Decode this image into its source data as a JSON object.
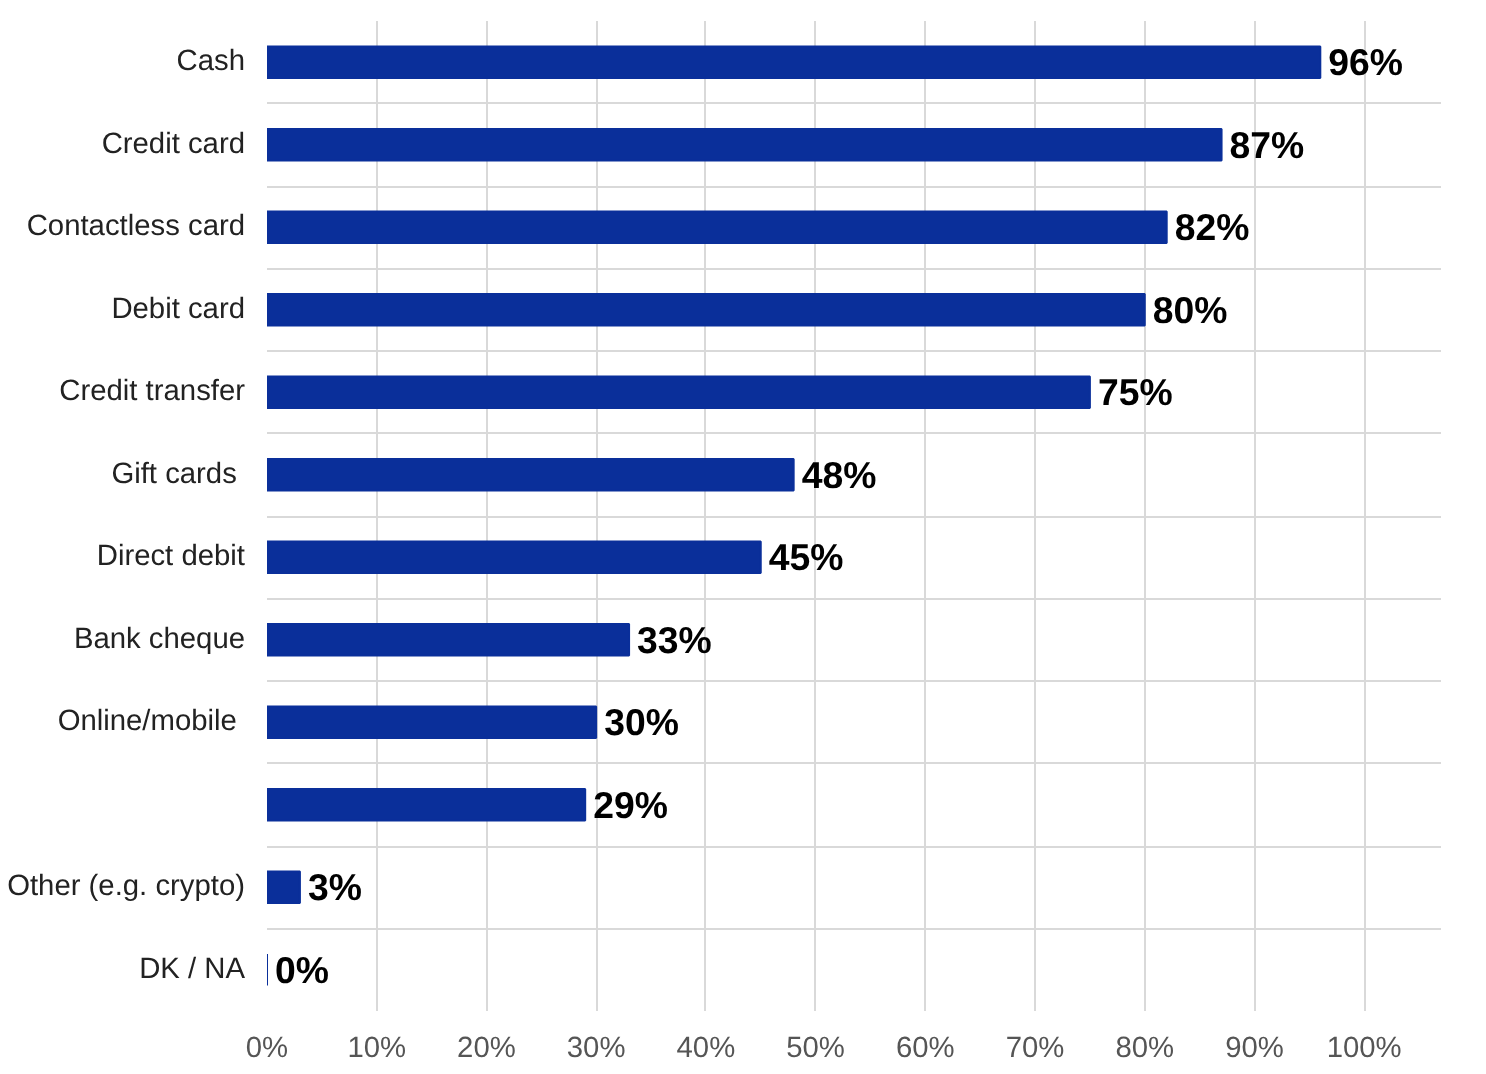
{
  "chart_data": {
    "type": "bar",
    "orientation": "horizontal",
    "categories": [
      "Cash",
      "Credit card",
      "Contactless card",
      "Debit card",
      "Credit transfer",
      "Gift cards ",
      "Direct debit",
      "Bank cheque",
      "Online/mobile ",
      null,
      "Other (e.g. crypto)",
      "DK / NA"
    ],
    "values": [
      96,
      87,
      82,
      80,
      75,
      48,
      45,
      33,
      30,
      29,
      3,
      0
    ],
    "color": "#0a2f9a",
    "value_labels": [
      "96%",
      "87%",
      "82%",
      "80%",
      "75%",
      "48%",
      "45%",
      "33%",
      "30%",
      "29%",
      "3%",
      "0%"
    ],
    "xlim": [
      0,
      100
    ],
    "xticks": [
      {
        "value": 0,
        "label": "0%"
      },
      {
        "value": 10,
        "label": "10%"
      },
      {
        "value": 20,
        "label": "20%"
      },
      {
        "value": 30,
        "label": "30%"
      },
      {
        "value": 40,
        "label": "40%"
      },
      {
        "value": 50,
        "label": "50%"
      },
      {
        "value": 60,
        "label": "60%"
      },
      {
        "value": 70,
        "label": "70%"
      },
      {
        "value": 80,
        "label": "80%"
      },
      {
        "value": 90,
        "label": "90%"
      },
      {
        "value": 100,
        "label": "100%"
      }
    ],
    "grid": true
  }
}
